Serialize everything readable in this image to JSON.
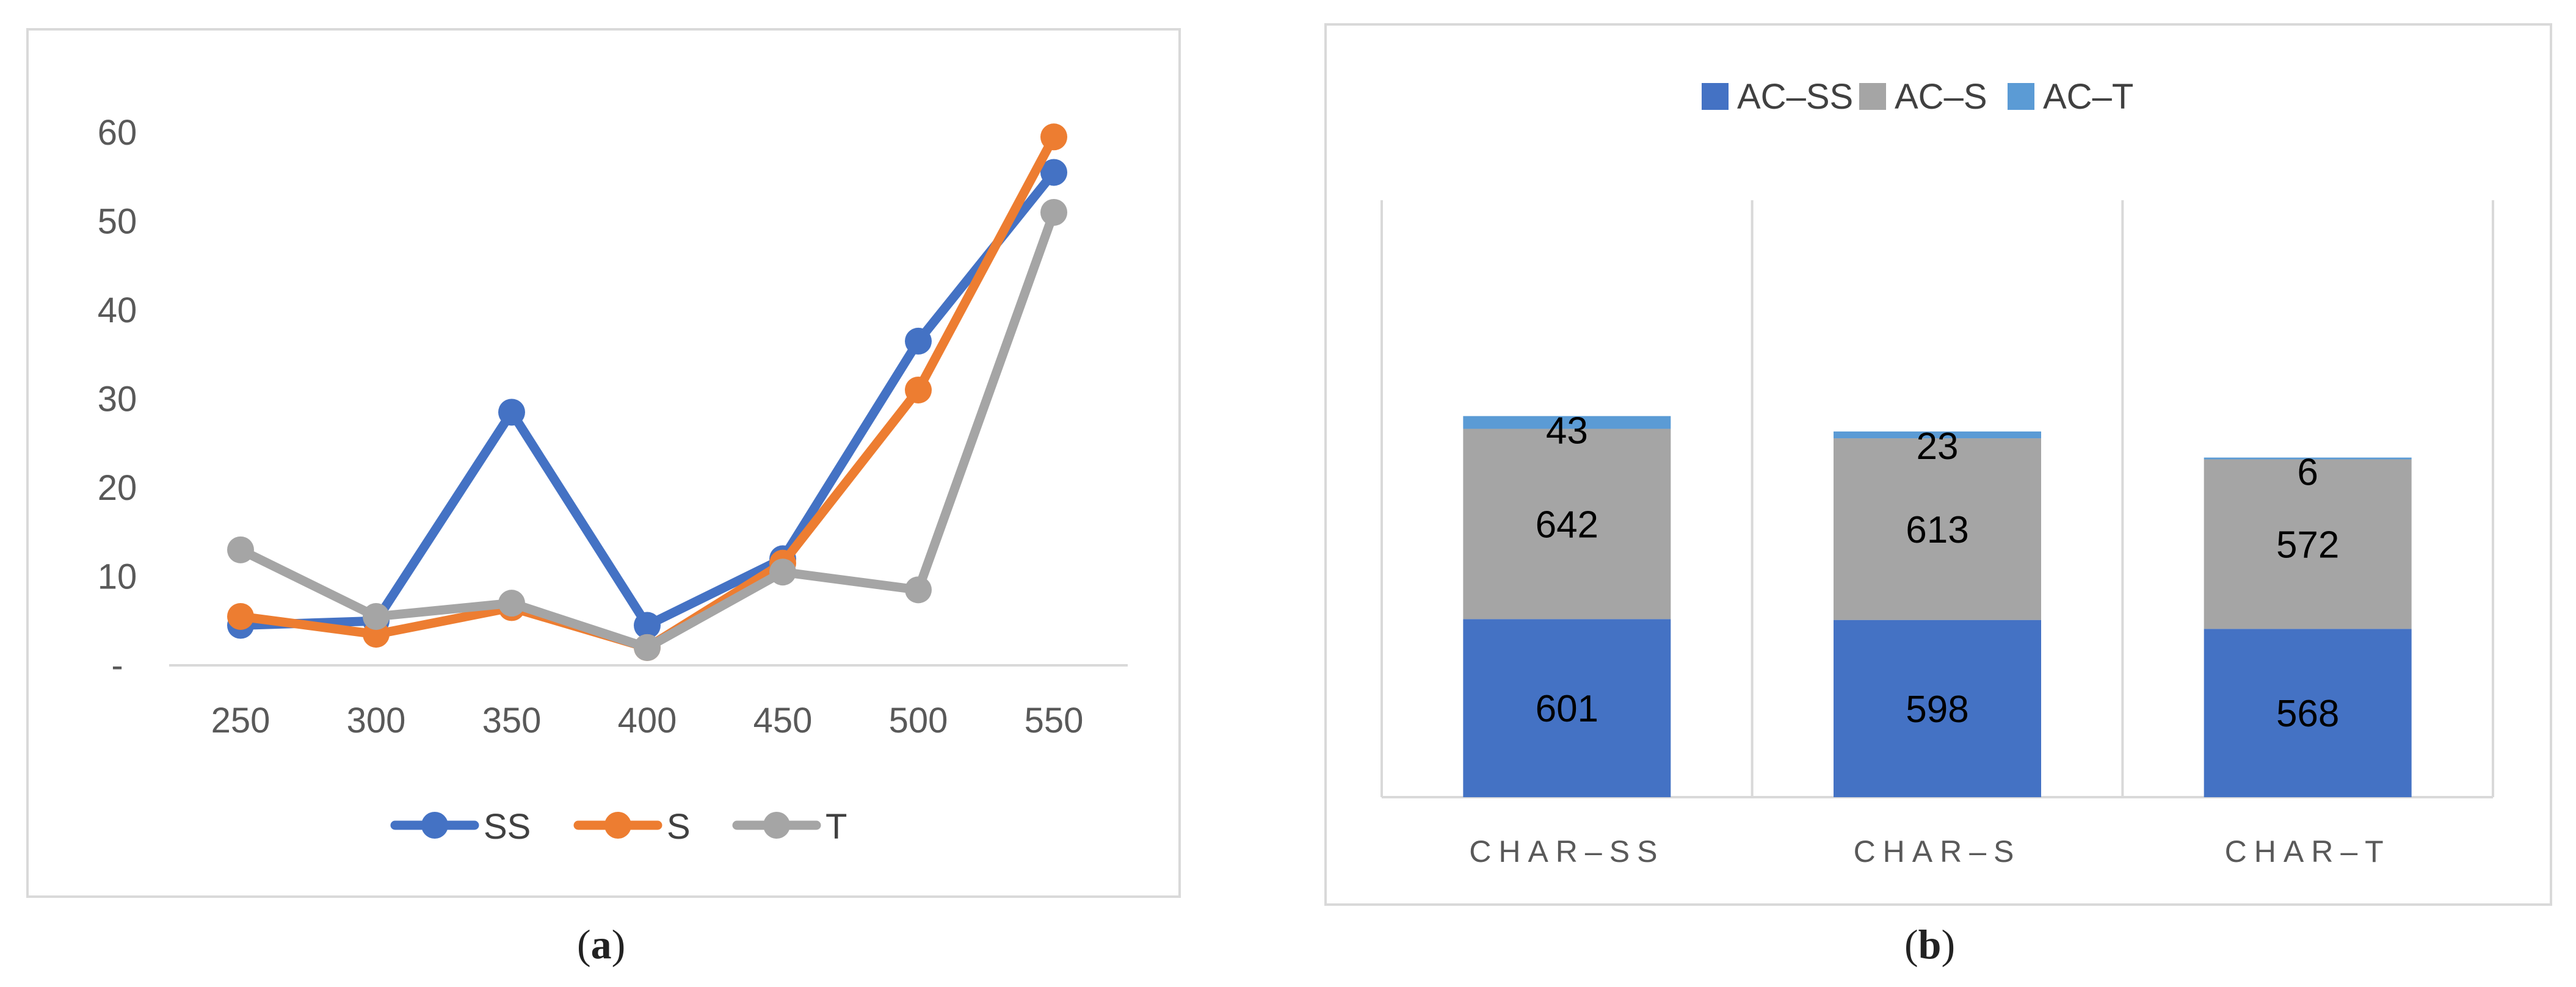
{
  "captions": {
    "a": "a",
    "b": "b"
  },
  "chart_data": [
    {
      "type": "line",
      "x": [
        250,
        300,
        350,
        400,
        450,
        500,
        550
      ],
      "y_ticks": [
        "-",
        "10",
        "20",
        "30",
        "40",
        "50",
        "60"
      ],
      "ylim": [
        0,
        60
      ],
      "series": [
        {
          "name": "SS",
          "color": "#4472c4",
          "values": [
            4.5,
            5,
            28.5,
            4.5,
            12,
            36.5,
            55.5
          ]
        },
        {
          "name": "S",
          "color": "#ed7d31",
          "values": [
            5.5,
            3.5,
            6.5,
            2,
            11.5,
            31,
            59.5
          ]
        },
        {
          "name": "T",
          "color": "#a5a5a5",
          "values": [
            13,
            5.5,
            7,
            2,
            10.5,
            8.5,
            51
          ]
        }
      ],
      "legend_position": "bottom",
      "grid": false
    },
    {
      "type": "bar",
      "stacked": true,
      "categories": [
        "CHAR–SS",
        "CHAR–S",
        "CHAR–T"
      ],
      "series": [
        {
          "name": "AC–SS",
          "color": "#4472c4",
          "values": [
            601,
            598,
            568
          ]
        },
        {
          "name": "AC–S",
          "color": "#a5a5a5",
          "values": [
            642,
            613,
            572
          ]
        },
        {
          "name": "AC–T",
          "color": "#5b9bd5",
          "values": [
            43,
            23,
            6
          ]
        }
      ],
      "legend_position": "top",
      "grid": true
    }
  ]
}
